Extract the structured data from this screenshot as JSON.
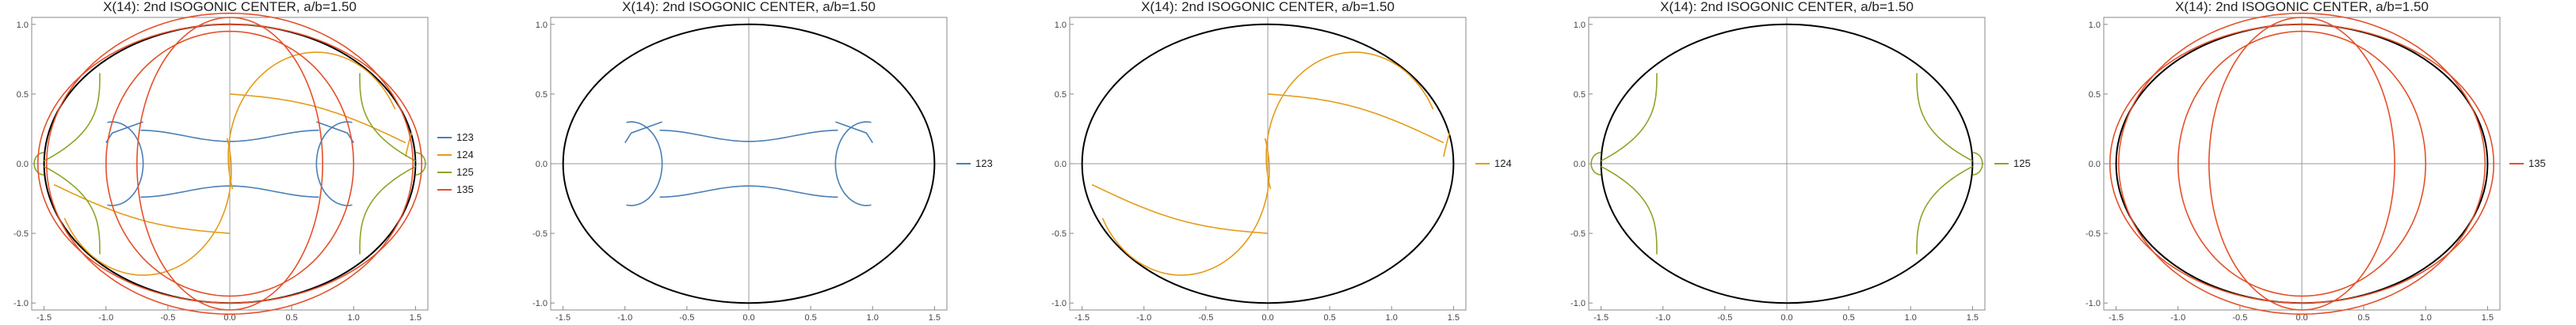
{
  "chart_data": [
    {
      "type": "line",
      "title": "X(14): 2nd ISOGONIC CENTER, a/b=1.50",
      "xlabel": "",
      "ylabel": "",
      "xlim": [
        -1.6,
        1.6
      ],
      "ylim": [
        -1.05,
        1.05
      ],
      "xticks": [
        "-1.5",
        "-1.0",
        "-0.5",
        "0.0",
        "0.5",
        "1.0",
        "1.5"
      ],
      "yticks": [
        "-1.0",
        "-0.5",
        "0.0",
        "0.5",
        "1.0"
      ],
      "ellipse": {
        "a": 1.5,
        "b": 1.0,
        "color": "#000000"
      },
      "legend_position": "right",
      "series": [
        {
          "name": "123",
          "color": "#4a7fb5",
          "shape": "bone"
        },
        {
          "name": "124",
          "color": "#e59b1a",
          "shape": "s-curve"
        },
        {
          "name": "125",
          "color": "#8aa628",
          "shape": "side-hooks"
        },
        {
          "name": "135",
          "color": "#e5502a",
          "shape": "ovals"
        }
      ]
    },
    {
      "type": "line",
      "title": "X(14): 2nd ISOGONIC CENTER, a/b=1.50",
      "xlabel": "",
      "ylabel": "",
      "xlim": [
        -1.6,
        1.6
      ],
      "ylim": [
        -1.05,
        1.05
      ],
      "xticks": [
        "-1.5",
        "-1.0",
        "-0.5",
        "0.0",
        "0.5",
        "1.0",
        "1.5"
      ],
      "yticks": [
        "-1.0",
        "-0.5",
        "0.0",
        "0.5",
        "1.0"
      ],
      "ellipse": {
        "a": 1.5,
        "b": 1.0,
        "color": "#000000"
      },
      "legend_position": "right",
      "series": [
        {
          "name": "123",
          "color": "#4a7fb5",
          "shape": "bone"
        }
      ]
    },
    {
      "type": "line",
      "title": "X(14): 2nd ISOGONIC CENTER, a/b=1.50",
      "xlabel": "",
      "ylabel": "",
      "xlim": [
        -1.6,
        1.6
      ],
      "ylim": [
        -1.05,
        1.05
      ],
      "xticks": [
        "-1.5",
        "-1.0",
        "-0.5",
        "0.0",
        "0.5",
        "1.0",
        "1.5"
      ],
      "yticks": [
        "-1.0",
        "-0.5",
        "0.0",
        "0.5",
        "1.0"
      ],
      "ellipse": {
        "a": 1.5,
        "b": 1.0,
        "color": "#000000"
      },
      "legend_position": "right",
      "series": [
        {
          "name": "124",
          "color": "#e59b1a",
          "shape": "s-curve"
        }
      ]
    },
    {
      "type": "line",
      "title": "X(14): 2nd ISOGONIC CENTER, a/b=1.50",
      "xlabel": "",
      "ylabel": "",
      "xlim": [
        -1.6,
        1.6
      ],
      "ylim": [
        -1.05,
        1.05
      ],
      "xticks": [
        "-1.5",
        "-1.0",
        "-0.5",
        "0.0",
        "0.5",
        "1.0",
        "1.5"
      ],
      "yticks": [
        "-1.0",
        "-0.5",
        "0.0",
        "0.5",
        "1.0"
      ],
      "ellipse": {
        "a": 1.5,
        "b": 1.0,
        "color": "#000000"
      },
      "legend_position": "right",
      "series": [
        {
          "name": "125",
          "color": "#8aa628",
          "shape": "side-hooks"
        }
      ]
    },
    {
      "type": "line",
      "title": "X(14): 2nd ISOGONIC CENTER, a/b=1.50",
      "xlabel": "",
      "ylabel": "",
      "xlim": [
        -1.6,
        1.6
      ],
      "ylim": [
        -1.05,
        1.05
      ],
      "xticks": [
        "-1.5",
        "-1.0",
        "-0.5",
        "0.0",
        "0.5",
        "1.0",
        "1.5"
      ],
      "yticks": [
        "-1.0",
        "-0.5",
        "0.0",
        "0.5",
        "1.0"
      ],
      "ellipse": {
        "a": 1.5,
        "b": 1.0,
        "color": "#000000"
      },
      "legend_position": "right",
      "series": [
        {
          "name": "135",
          "color": "#e5502a",
          "shape": "ovals"
        }
      ]
    }
  ]
}
